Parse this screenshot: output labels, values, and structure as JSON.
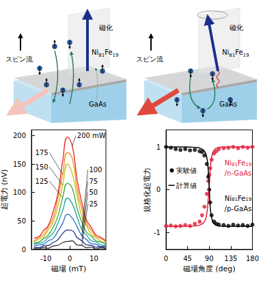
{
  "diagrams": {
    "panels": [
      {
        "magnetization": "磁化",
        "spin_current": "スピン流",
        "ferromagnet": "Ni81Fe19",
        "semiconductor": "GaAs"
      },
      {
        "magnetization": "磁化",
        "spin_current": "スピン流",
        "ferromagnet": "Ni81Fe19",
        "semiconductor": "GaAs"
      }
    ]
  },
  "chart_data": [
    {
      "type": "line",
      "xlabel": "磁場 (mT)",
      "ylabel": "起電力 (nV)",
      "xlim": [
        -16,
        15
      ],
      "xticks": [
        -10,
        0,
        10
      ],
      "ylim": [
        0,
        210
      ],
      "yticks": [
        0,
        50,
        100,
        150,
        200
      ],
      "x": [
        -15,
        -13,
        -11,
        -9,
        -7,
        -5,
        -3,
        -1,
        1,
        3,
        5,
        7,
        9,
        11,
        13,
        15
      ],
      "series": [
        {
          "name": "200 mW",
          "color": "#e6211b",
          "values": [
            20,
            22,
            33,
            42,
            66,
            98,
            155,
            197,
            182,
            123,
            82,
            51,
            38,
            25,
            21,
            15
          ]
        },
        {
          "name": "175",
          "color": "#f08a1e",
          "values": [
            14,
            21,
            26,
            39,
            55,
            90,
            132,
            170,
            160,
            107,
            71,
            45,
            33,
            22,
            19,
            13
          ]
        },
        {
          "name": "150",
          "color": "#c2bf16",
          "values": [
            12,
            18,
            22,
            34,
            48,
            76,
            113,
            150,
            133,
            95,
            58,
            41,
            26,
            21,
            14,
            11
          ]
        },
        {
          "name": "125",
          "color": "#3aa43a",
          "values": [
            11,
            13,
            19,
            25,
            39,
            58,
            91,
            116,
            107,
            72,
            48,
            30,
            23,
            15,
            13,
            9
          ]
        },
        {
          "name": "100",
          "color": "#1aa59b",
          "values": [
            9,
            11,
            13,
            21,
            28,
            46,
            68,
            90,
            80,
            57,
            35,
            25,
            15,
            13,
            8,
            7
          ]
        },
        {
          "name": "75",
          "color": "#2a6fc9",
          "values": [
            6,
            8,
            9,
            15,
            19,
            32,
            46,
            62,
            55,
            40,
            24,
            17,
            10,
            9,
            5,
            6
          ]
        },
        {
          "name": "50",
          "color": "#1f2f8a",
          "values": [
            4,
            3,
            6,
            7,
            12,
            17,
            28,
            34,
            33,
            21,
            15,
            8,
            7,
            4,
            5,
            2
          ]
        },
        {
          "name": "25",
          "color": "#333333",
          "values": [
            2,
            1,
            3,
            2,
            6,
            7,
            12,
            14,
            15,
            8,
            7,
            3,
            4,
            1,
            3,
            1
          ]
        }
      ]
    },
    {
      "type": "scatter",
      "xlabel": "磁場角度 (deg)",
      "ylabel": "規格化起電力",
      "xlim": [
        0,
        180
      ],
      "xticks": [
        0,
        45,
        90,
        135,
        180
      ],
      "ylim": [
        -1.4,
        1.4
      ],
      "yticks": [
        -1,
        0,
        1
      ],
      "legend_entries": [
        {
          "label": "実験値",
          "marker": "circle"
        },
        {
          "label": "計算値",
          "line_style": "solid"
        }
      ],
      "series": [
        {
          "name": "Ni81Fe19/n-GaAs",
          "color": "#e0203a",
          "type": "scatter",
          "marker": "circle",
          "x": [
            0,
            10,
            20,
            30,
            40,
            50,
            60,
            70,
            75,
            80,
            85,
            88,
            90,
            92,
            95,
            100,
            105,
            110,
            120,
            130,
            140,
            150,
            160,
            170,
            180
          ],
          "values": [
            -0.85,
            -0.84,
            -0.86,
            -0.85,
            -0.83,
            -0.85,
            -0.8,
            -0.75,
            -0.6,
            -0.4,
            -0.1,
            0.2,
            0.35,
            0.5,
            0.7,
            0.85,
            0.9,
            0.95,
            0.97,
            0.98,
            1.0,
            0.97,
            1.0,
            0.98,
            1.0
          ]
        },
        {
          "name": "Ni81Fe19/n-GaAs",
          "color": "#e0203a",
          "type": "line",
          "line_style": "solid",
          "x": [
            0,
            20,
            40,
            60,
            70,
            80,
            85,
            88,
            90,
            92,
            95,
            100,
            110,
            120,
            140,
            160,
            180
          ],
          "values": [
            -0.86,
            -0.86,
            -0.86,
            -0.85,
            -0.83,
            -0.75,
            -0.55,
            -0.2,
            0.1,
            0.45,
            0.75,
            0.92,
            0.99,
            1,
            1,
            1,
            1
          ]
        },
        {
          "name": "Ni81Fe19/p-GaAs",
          "color": "#000000",
          "type": "scatter",
          "marker": "circle",
          "x": [
            0,
            10,
            20,
            30,
            40,
            50,
            60,
            70,
            75,
            80,
            85,
            88,
            90,
            92,
            95,
            100,
            105,
            110,
            120,
            130,
            140,
            150,
            160,
            170,
            180
          ],
          "values": [
            1.0,
            0.98,
            0.95,
            0.93,
            0.95,
            0.92,
            0.93,
            0.9,
            0.88,
            0.8,
            0.6,
            0.3,
            0.0,
            -0.3,
            -0.6,
            -0.75,
            -0.8,
            -0.82,
            -0.83,
            -0.85,
            -0.82,
            -0.84,
            -0.83,
            -0.85,
            -0.82
          ]
        },
        {
          "name": "Ni81Fe19/p-GaAs",
          "color": "#000000",
          "type": "line",
          "line_style": "solid",
          "x": [
            0,
            20,
            40,
            60,
            70,
            80,
            85,
            88,
            90,
            92,
            95,
            100,
            110,
            120,
            140,
            160,
            180
          ],
          "values": [
            1,
            1,
            1,
            0.99,
            0.97,
            0.9,
            0.75,
            0.45,
            0.05,
            -0.4,
            -0.65,
            -0.8,
            -0.85,
            -0.86,
            -0.86,
            -0.86,
            -0.86
          ]
        }
      ]
    }
  ]
}
